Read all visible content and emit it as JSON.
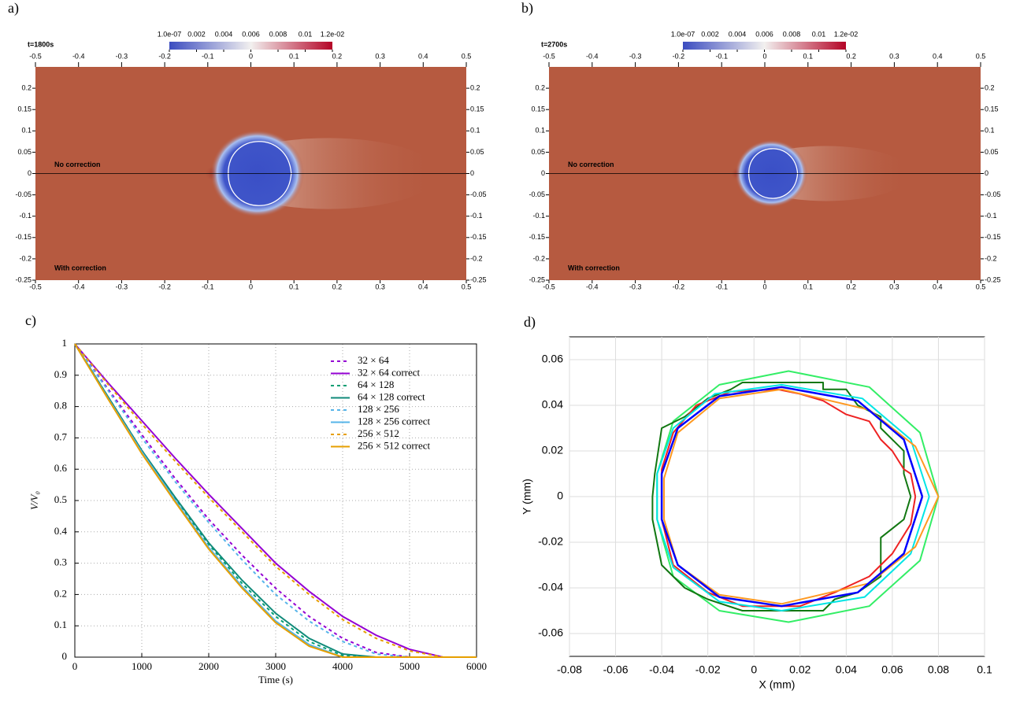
{
  "chart_data": [
    {
      "type": "field",
      "panel": "a)",
      "time_label": "t=1800s",
      "clim": [
        1e-07,
        0.012
      ],
      "colorbar_ticks": [
        {
          "value": 1e-07,
          "label": "1.0e-07"
        },
        0.002,
        0.004,
        0.006,
        0.008,
        0.01,
        {
          "value": 0.012,
          "label": "1.2e-02"
        }
      ],
      "xlim": [
        -0.5,
        0.5
      ],
      "xticks": [
        -0.5,
        -0.4,
        -0.3,
        -0.2,
        -0.1,
        0,
        0.1,
        0.2,
        0.3,
        0.4,
        0.5
      ],
      "ylim": [
        -0.25,
        0.25
      ],
      "yticks": [
        -0.25,
        -0.2,
        -0.15,
        -0.1,
        -0.05,
        0,
        0.05,
        0.1,
        0.15,
        0.2
      ],
      "annotations": [
        "No correction",
        "With correction"
      ]
    },
    {
      "type": "field",
      "panel": "b)",
      "time_label": "t=2700s",
      "clim": [
        1e-07,
        0.012
      ],
      "colorbar_ticks": [
        {
          "value": 1e-07,
          "label": "1.0e-07"
        },
        0.002,
        0.004,
        0.006,
        0.008,
        0.01,
        {
          "value": 0.012,
          "label": "1.2e-02"
        }
      ],
      "xlim": [
        -0.5,
        0.5
      ],
      "xticks": [
        -0.5,
        -0.4,
        -0.3,
        -0.2,
        -0.1,
        0,
        0.1,
        0.2,
        0.3,
        0.4,
        0.5
      ],
      "ylim": [
        -0.25,
        0.25
      ],
      "yticks": [
        -0.25,
        -0.2,
        -0.15,
        -0.1,
        -0.05,
        0,
        0.05,
        0.1,
        0.15,
        0.2
      ],
      "annotations": [
        "No correction",
        "With correction"
      ]
    },
    {
      "type": "line",
      "panel": "c)",
      "x_label": "Time (s)",
      "y_label": "V/V₀",
      "grid": true,
      "xlim": [
        0,
        6000
      ],
      "xticks": [
        0,
        1000,
        2000,
        3000,
        4000,
        5000,
        6000
      ],
      "ylim": [
        0,
        1
      ],
      "yticks": [
        0,
        0.1,
        0.2,
        0.3,
        0.4,
        0.5,
        0.6,
        0.7,
        0.8,
        0.9,
        1
      ],
      "x": [
        0,
        500,
        1000,
        1500,
        2000,
        2500,
        3000,
        3500,
        4000,
        4500,
        5000,
        5500,
        6000
      ],
      "series": [
        {
          "name": "32 × 64",
          "color": "#9400d3",
          "style": "dashed",
          "values": [
            1,
            0.855,
            0.71,
            0.57,
            0.44,
            0.325,
            0.22,
            0.13,
            0.06,
            0.015,
            0,
            0,
            0
          ]
        },
        {
          "name": "32 × 64 correct",
          "color": "#9400d3",
          "style": "solid",
          "values": [
            1,
            0.875,
            0.755,
            0.635,
            0.52,
            0.41,
            0.3,
            0.21,
            0.13,
            0.07,
            0.025,
            0,
            0
          ]
        },
        {
          "name": "64 × 128",
          "color": "#009e73",
          "style": "dashed",
          "values": [
            1,
            0.83,
            0.66,
            0.505,
            0.36,
            0.235,
            0.13,
            0.05,
            0.005,
            0,
            0,
            0,
            0
          ]
        },
        {
          "name": "64 × 128 correct",
          "color": "#108a7a",
          "style": "solid",
          "values": [
            1,
            0.83,
            0.66,
            0.51,
            0.365,
            0.245,
            0.14,
            0.06,
            0.01,
            0,
            0,
            0,
            0
          ]
        },
        {
          "name": "128 × 256",
          "color": "#56b4e9",
          "style": "dashed",
          "values": [
            1,
            0.85,
            0.7,
            0.56,
            0.43,
            0.31,
            0.2,
            0.115,
            0.05,
            0.01,
            0,
            0,
            0
          ]
        },
        {
          "name": "128 × 256 correct",
          "color": "#56b4e9",
          "style": "solid",
          "values": [
            1,
            0.825,
            0.655,
            0.5,
            0.35,
            0.225,
            0.115,
            0.04,
            0,
            0,
            0,
            0,
            0
          ]
        },
        {
          "name": "256 × 512",
          "color": "#e69f00",
          "style": "dashed",
          "values": [
            1,
            0.87,
            0.745,
            0.625,
            0.51,
            0.4,
            0.29,
            0.2,
            0.12,
            0.06,
            0.02,
            0,
            0
          ]
        },
        {
          "name": "256 × 512 correct",
          "color": "#e69f00",
          "style": "solid",
          "values": [
            1,
            0.823,
            0.65,
            0.495,
            0.345,
            0.22,
            0.11,
            0.035,
            0,
            0,
            0,
            0,
            0
          ]
        }
      ]
    },
    {
      "type": "contour",
      "panel": "d)",
      "x_label": "X (mm)",
      "y_label": "Y (mm)",
      "grid": true,
      "xlim": [
        -0.08,
        0.1
      ],
      "xticks": [
        -0.08,
        -0.06,
        -0.04,
        -0.02,
        0,
        0.02,
        0.04,
        0.06,
        0.08,
        0.1
      ],
      "ylim": [
        -0.07,
        0.07
      ],
      "yticks": [
        -0.06,
        -0.04,
        -0.02,
        0,
        0.02,
        0.04,
        0.06
      ],
      "series": [
        {
          "color": "#33ee66",
          "x": [
            0.08,
            0.072,
            0.05,
            0.015,
            -0.015,
            -0.035,
            -0.042,
            -0.042,
            -0.035,
            -0.015,
            0.015,
            0.05,
            0.072,
            0.08
          ],
          "y": [
            0,
            0.028,
            0.048,
            0.055,
            0.049,
            0.033,
            0.01,
            -0.01,
            -0.035,
            -0.05,
            -0.055,
            -0.048,
            -0.028,
            0
          ]
        },
        {
          "color": "#117711",
          "x": [
            0.068,
            0.065,
            0.065,
            0.055,
            0.055,
            0.045,
            0.04,
            0.03,
            0.03,
            -0.005,
            -0.01,
            -0.02,
            -0.03,
            -0.04,
            -0.043,
            -0.044,
            -0.044,
            -0.04,
            -0.03,
            -0.02,
            -0.005,
            0.03,
            0.035,
            0.045,
            0.055,
            0.055,
            0.065,
            0.068
          ],
          "y": [
            0,
            0.01,
            0.02,
            0.03,
            0.035,
            0.04,
            0.047,
            0.047,
            0.05,
            0.05,
            0.047,
            0.043,
            0.035,
            0.03,
            0.01,
            0,
            -0.01,
            -0.03,
            -0.04,
            -0.045,
            -0.05,
            -0.05,
            -0.045,
            -0.042,
            -0.035,
            -0.018,
            -0.01,
            0
          ]
        },
        {
          "color": "#ee2222",
          "x": [
            0.07,
            0.068,
            0.065,
            0.06,
            0.055,
            0.05,
            0.04,
            0.03,
            0.02,
            0.01,
            -0.01,
            -0.025,
            -0.035,
            -0.04,
            -0.04,
            -0.035,
            -0.02,
            -0.005,
            0.02,
            0.035,
            0.05,
            0.06,
            0.068,
            0.07
          ],
          "y": [
            0,
            0.01,
            0.012,
            0.02,
            0.025,
            0.033,
            0.036,
            0.042,
            0.045,
            0.047,
            0.046,
            0.04,
            0.028,
            0.012,
            -0.01,
            -0.03,
            -0.042,
            -0.048,
            -0.048,
            -0.042,
            -0.035,
            -0.025,
            -0.012,
            0
          ]
        },
        {
          "color": "#00e5e5",
          "x": [
            0.076,
            0.068,
            0.047,
            0.012,
            -0.017,
            -0.035,
            -0.042,
            -0.042,
            -0.035,
            -0.015,
            0.012,
            0.048,
            0.068,
            0.076
          ],
          "y": [
            0,
            0.025,
            0.043,
            0.049,
            0.045,
            0.03,
            0.01,
            -0.01,
            -0.031,
            -0.046,
            -0.05,
            -0.044,
            -0.025,
            0
          ]
        },
        {
          "color": "#ff9922",
          "x": [
            0.08,
            0.07,
            0.05,
            0.012,
            -0.015,
            -0.033,
            -0.039,
            -0.039,
            -0.033,
            -0.015,
            0.012,
            0.05,
            0.07,
            0.08
          ],
          "y": [
            0,
            0.022,
            0.038,
            0.047,
            0.043,
            0.028,
            0.008,
            -0.01,
            -0.03,
            -0.043,
            -0.047,
            -0.038,
            -0.022,
            0
          ]
        },
        {
          "color": "#0000ff",
          "x": [
            0.073,
            0.065,
            0.045,
            0.012,
            -0.015,
            -0.033,
            -0.04,
            -0.04,
            -0.033,
            -0.015,
            0.012,
            0.045,
            0.065,
            0.073
          ],
          "y": [
            0,
            0.025,
            0.042,
            0.048,
            0.044,
            0.03,
            0.01,
            -0.01,
            -0.03,
            -0.044,
            -0.048,
            -0.042,
            -0.025,
            0
          ]
        }
      ]
    }
  ]
}
